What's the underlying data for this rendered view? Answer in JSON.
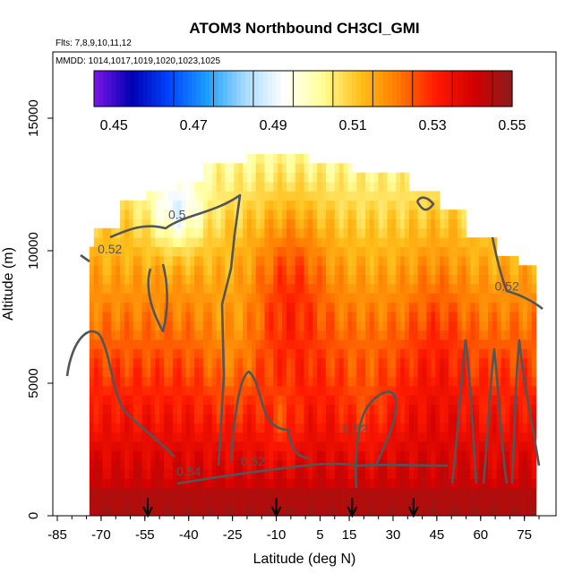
{
  "chart_data": {
    "type": "heatmap",
    "title": "ATOM3 Northbound CH3Cl_GMI",
    "subtitle_flights": "Flts: 7,8,9,10,11,12",
    "subtitle_dates": "MMDD: 1014,1017,1019,1020,1023,1025",
    "xlabel": "Latitude (deg N)",
    "ylabel": "Altitude (m)",
    "xlim": [
      -85,
      80
    ],
    "ylim": [
      0,
      17500
    ],
    "x_ticks": [
      -85,
      -70,
      -55,
      -40,
      -25,
      -10,
      5,
      15,
      30,
      45,
      60,
      75
    ],
    "y_ticks": [
      0,
      5000,
      10000,
      15000
    ],
    "colorbar": {
      "range": [
        0.445,
        0.55
      ],
      "ticks": [
        0.45,
        0.47,
        0.49,
        0.51,
        0.53,
        0.55
      ],
      "tick_labels": [
        "0.45",
        "0.47",
        "0.49",
        "0.51",
        "0.53",
        "0.55"
      ],
      "stops": [
        "#7a17e6",
        "#0000b4",
        "#0046ff",
        "#1ea0ff",
        "#aadcff",
        "#ffffff",
        "#ffff99",
        "#ffc01a",
        "#ff7a00",
        "#ff1a00",
        "#d20000",
        "#8c1c1c"
      ]
    },
    "contour_labels": [
      {
        "text": "0.5",
        "x": -44,
        "y": 11200
      },
      {
        "text": "0.52",
        "x": -67,
        "y": 9900
      },
      {
        "text": "0.52",
        "x": 69,
        "y": 8500
      },
      {
        "text": "0.52",
        "x": 17,
        "y": 3100
      },
      {
        "text": "0.52",
        "x": -18,
        "y": 1900
      },
      {
        "text": "0.54",
        "x": -40,
        "y": 1500
      }
    ],
    "flight_markers_lat": [
      -54,
      -10,
      16,
      37
    ],
    "field_notes": "Mixing-ratio field (ppb) on latitude x altitude grid; high values (~0.54-0.55) near surface, lower (~0.49-0.50) aloft near -45 to -40 deg N at ~11-12 km."
  }
}
